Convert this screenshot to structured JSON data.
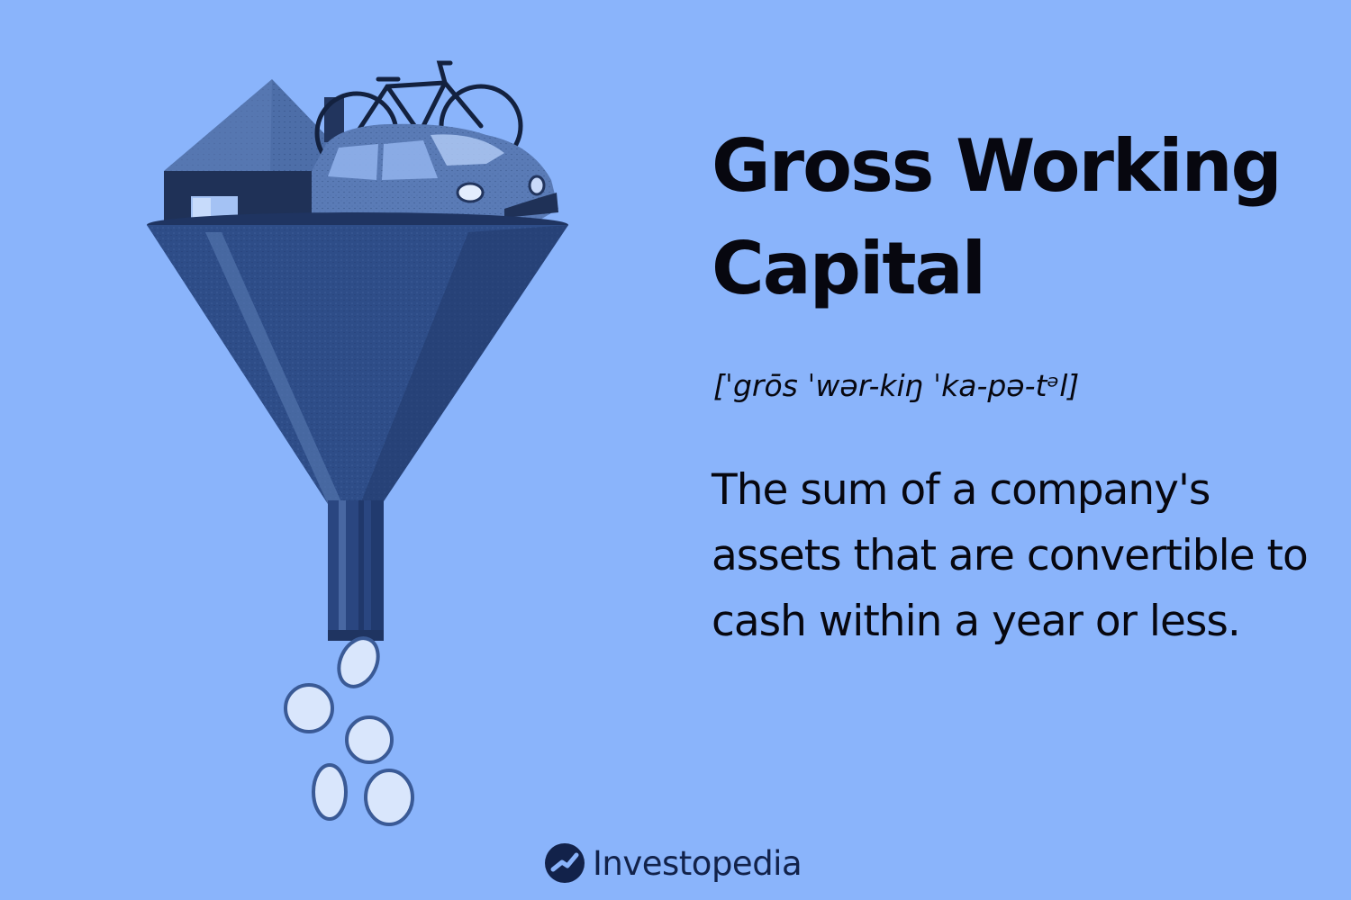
{
  "colors": {
    "background": "#8ab4fb",
    "text": "#07070f",
    "funnel": "#2e4d88",
    "funnel_shade": "#223a6c",
    "coin": "#d9e6fc",
    "brand": "#12224a"
  },
  "icons": {
    "illustration": [
      "funnel-icon",
      "house-icon",
      "bicycle-icon",
      "car-icon",
      "coin-icon"
    ],
    "brand": "investopedia-logo-icon"
  },
  "term": {
    "title": "Gross Working Capital",
    "pronunciation": "[ˈgrōs ˈwər-kiŋ ˈka-pə-tᵊl]",
    "definition": "The sum of a company's assets that are convertible to cash within a year or less."
  },
  "brand": {
    "name": "Investopedia"
  }
}
